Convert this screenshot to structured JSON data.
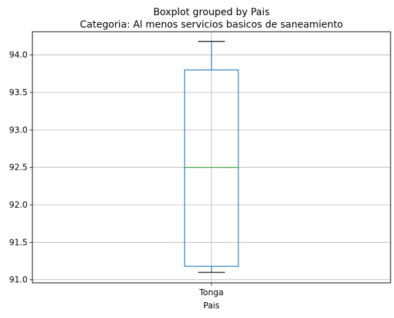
{
  "chart_data": {
    "type": "boxplot",
    "suptitle": "Boxplot grouped by Pais",
    "title": "Categoria: Al menos servicios basicos de saneamiento",
    "xlabel": "Pais",
    "ylabel": "",
    "categories": [
      "Tonga"
    ],
    "boxes": [
      {
        "category": "Tonga",
        "whisker_low": 91.1,
        "q1": 91.18,
        "median": 92.5,
        "q3": 93.8,
        "whisker_high": 94.18
      }
    ],
    "ylim": [
      90.96,
      94.31
    ],
    "yticks": [
      91.0,
      91.5,
      92.0,
      92.5,
      93.0,
      93.5,
      94.0
    ],
    "ytick_labels": [
      "91.0",
      "91.5",
      "92.0",
      "92.5",
      "93.0",
      "93.5",
      "94.0"
    ],
    "grid": true,
    "colors": {
      "box": "#1f77b4",
      "median": "#2ca02c",
      "whisker": "#1f77b4",
      "cap": "#000000",
      "grid": "#b0b0b0"
    }
  }
}
